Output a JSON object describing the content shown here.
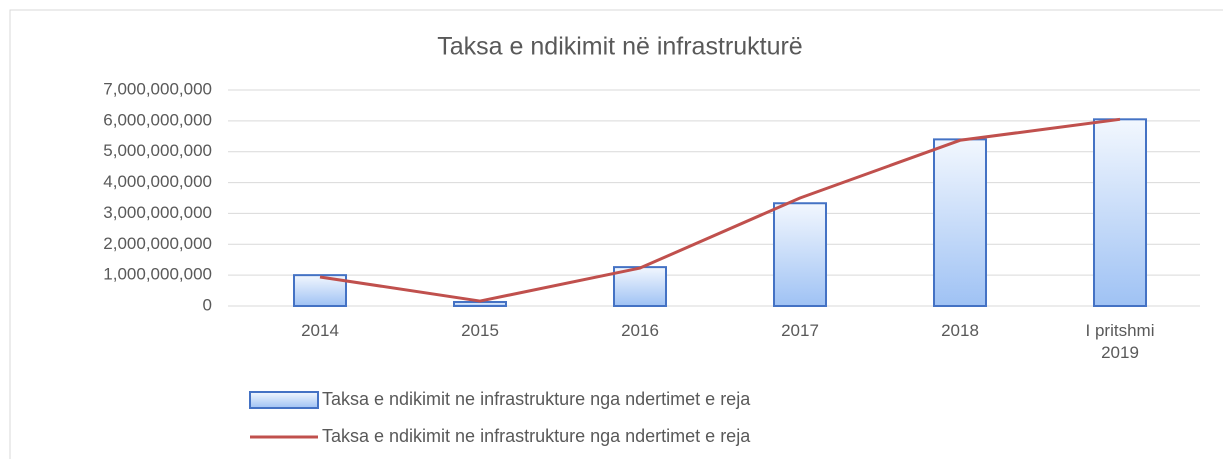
{
  "chart_data": {
    "type": "combo",
    "title": "Taksa e ndikimit  në infrastrukturë",
    "categories": [
      "2014",
      "2015",
      "2016",
      "2017",
      "2018",
      "I pritshmi 2019"
    ],
    "series": [
      {
        "name": "Taksa e ndikimit ne infrastrukture nga ndertimet e reja",
        "type": "bar",
        "color": "#4472c4",
        "values": [
          1000000000,
          130000000,
          1260000000,
          3330000000,
          5400000000,
          6050000000
        ]
      },
      {
        "name": "Taksa e ndikimit ne infrastrukture nga ndertimet e reja",
        "type": "line",
        "color": "#c0504d",
        "values": [
          940000000,
          160000000,
          1230000000,
          3500000000,
          5370000000,
          6050000000
        ]
      }
    ],
    "ylim": [
      0,
      7000000000
    ],
    "yticks": [
      0,
      {
        "value": 1000000000,
        "label": "1,000,000,000"
      },
      {
        "value": 2000000000,
        "label": "2,000,000,000"
      },
      {
        "value": 3000000000,
        "label": "3,000,000,000"
      },
      {
        "value": 4000000000,
        "label": "4,000,000,000"
      },
      {
        "value": 5000000000,
        "label": "5,000,000,000"
      },
      {
        "value": 6000000000,
        "label": "6,000,000,000"
      },
      {
        "value": 7000000000,
        "label": "7,000,000,000"
      }
    ],
    "grid": true,
    "legend": "bottom"
  }
}
